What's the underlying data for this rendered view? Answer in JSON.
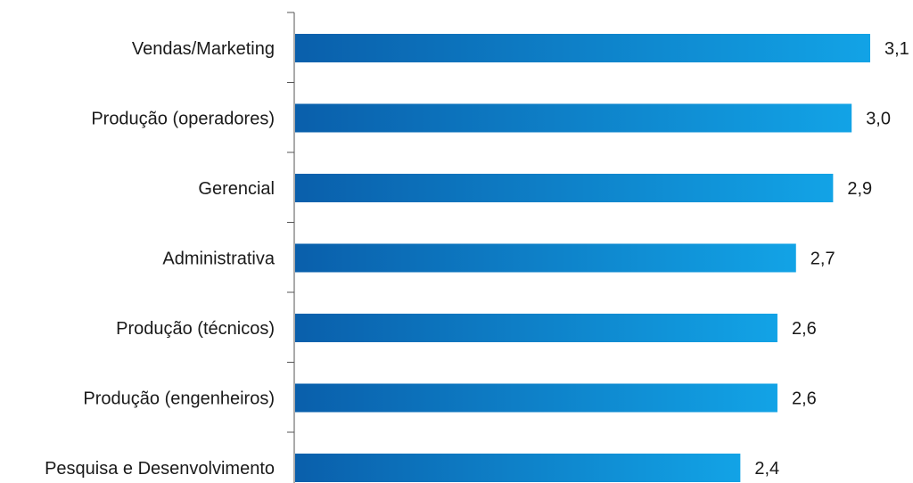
{
  "chart_data": {
    "type": "bar",
    "orientation": "horizontal",
    "categories": [
      "Vendas/Marketing",
      "Produção (operadores)",
      "Gerencial",
      "Administrativa",
      "Produção (técnicos)",
      "Produção (engenheiros)",
      "Pesquisa e Desenvolvimento"
    ],
    "values": [
      3.1,
      3.0,
      2.9,
      2.7,
      2.6,
      2.6,
      2.4
    ],
    "value_labels": [
      "3,1",
      "3,0",
      "2,9",
      "2,7",
      "2,6",
      "2,6",
      "2,4"
    ],
    "title": "",
    "xlabel": "",
    "ylabel": "",
    "xlim": [
      0,
      3.1
    ],
    "grid": false,
    "legend": "none",
    "colors": {
      "bar_start": "#0a5fab",
      "bar_end": "#12a3e6",
      "axis": "#555555",
      "text": "#1a1a1a"
    }
  }
}
